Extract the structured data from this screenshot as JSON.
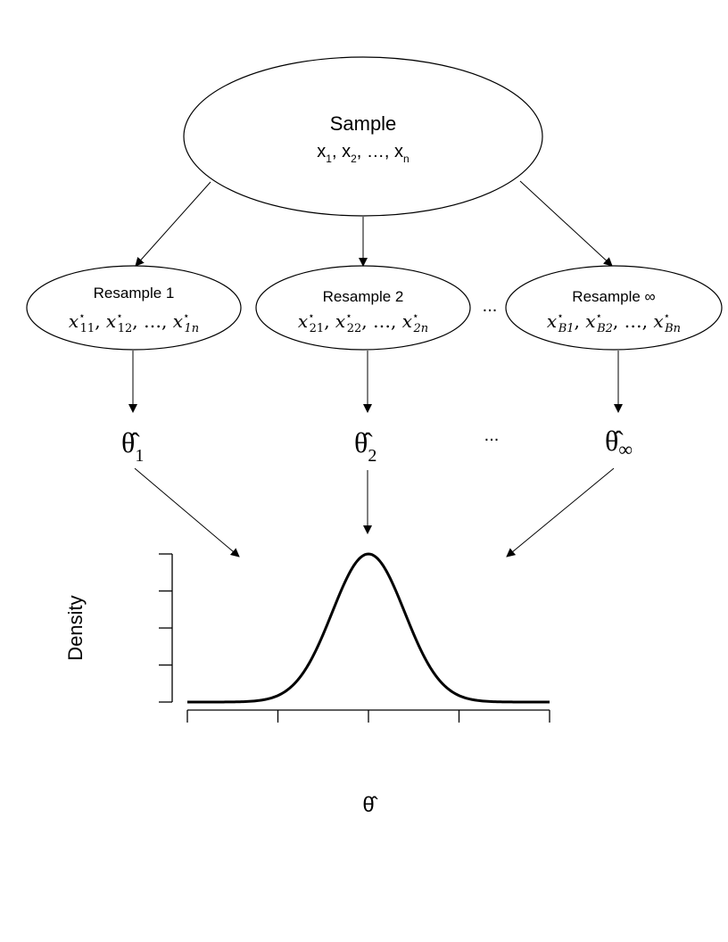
{
  "sample": {
    "title": "Sample",
    "items": [
      {
        "base": "x",
        "sub": "1"
      },
      {
        "base": "x",
        "sub": "2"
      },
      {
        "base": "x",
        "sub": "n"
      }
    ],
    "ellipsis": "…"
  },
  "resamples": [
    {
      "title": "Resample 1",
      "items": [
        {
          "base": "x",
          "sub": "11",
          "sup": "⋆"
        },
        {
          "base": "x",
          "sub": "12",
          "sup": "⋆"
        },
        {
          "base": "x",
          "sub": "1n",
          "sup": "⋆"
        }
      ],
      "ellipsis": "…",
      "stat": {
        "symbol": "θ̂",
        "sub": "1"
      }
    },
    {
      "title": "Resample 2",
      "items": [
        {
          "base": "x",
          "sub": "21",
          "sup": "⋆"
        },
        {
          "base": "x",
          "sub": "22",
          "sup": "⋆"
        },
        {
          "base": "x",
          "sub": "2n",
          "sup": "⋆"
        }
      ],
      "ellipsis": "…",
      "stat": {
        "symbol": "θ̂",
        "sub": "2"
      }
    },
    {
      "title": "Resample ∞",
      "items": [
        {
          "base": "x",
          "sub": "B1",
          "sup": "⋆"
        },
        {
          "base": "x",
          "sub": "B2",
          "sup": "⋆"
        },
        {
          "base": "x",
          "sub": "Bn",
          "sup": "⋆"
        }
      ],
      "ellipsis": "…",
      "stat": {
        "symbol": "θ̂",
        "sub": "∞"
      }
    }
  ],
  "gap_ellipsis_resamples": "...",
  "gap_ellipsis_stats": "...",
  "plot": {
    "ylabel": "Density",
    "xlabel": "θ̂",
    "curve": "normal density",
    "y_ticks": 5,
    "x_ticks": 5
  }
}
